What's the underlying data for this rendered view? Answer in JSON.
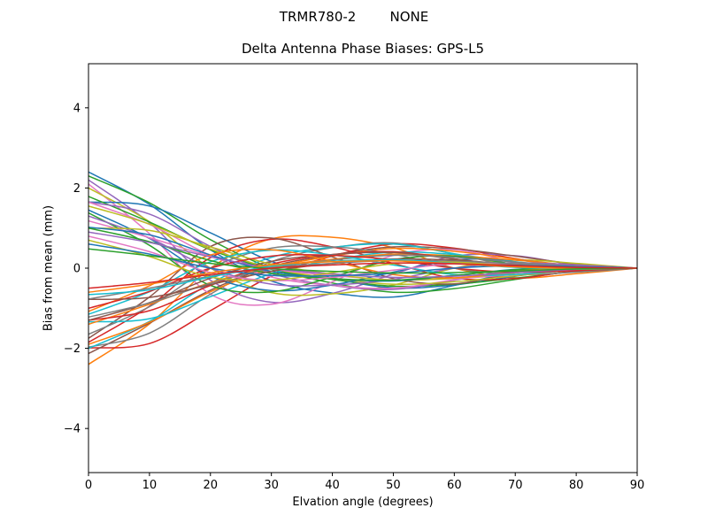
{
  "figure": {
    "suptitle": "TRMR780-2        NONE",
    "title": "Delta Antenna Phase Biases: GPS-L5",
    "xlabel": "Elvation angle (degrees)",
    "ylabel": "Bias from mean (mm)",
    "background": "#ffffff",
    "axes_color": "#000000"
  },
  "chart_data": {
    "type": "line",
    "suptitle": "TRMR780-2        NONE",
    "title": "Delta Antenna Phase Biases: GPS-L5",
    "xlabel": "Elvation angle (degrees)",
    "ylabel": "Bias from mean (mm)",
    "xlim": [
      0,
      90
    ],
    "ylim": [
      -5.1,
      5.1
    ],
    "x_ticks": [
      0,
      10,
      20,
      30,
      40,
      50,
      60,
      70,
      80,
      90
    ],
    "x_tick_labels": [
      "0",
      "10",
      "20",
      "30",
      "40",
      "50",
      "60",
      "70",
      "80",
      "90"
    ],
    "y_ticks": [
      -4,
      -2,
      0,
      2,
      4
    ],
    "y_tick_labels": [
      "−4",
      "−2",
      "0",
      "2",
      "4"
    ],
    "grid": false,
    "legend": "none",
    "line_width": 1.5,
    "color_cycle": [
      "#1f77b4",
      "#ff7f0e",
      "#2ca02c",
      "#d62728",
      "#9467bd",
      "#8c564b",
      "#e377c2",
      "#7f7f7f",
      "#bcbd22",
      "#17becf"
    ],
    "x": [
      0,
      10,
      20,
      30,
      40,
      50,
      60,
      70,
      80,
      90
    ],
    "series": [
      {
        "color": "#1f77b4",
        "values": [
          2.4,
          1.59,
          0.46,
          -0.32,
          -0.62,
          -0.72,
          -0.43,
          -0.1,
          0.05,
          0
        ]
      },
      {
        "color": "#ff7f0e",
        "values": [
          -2.4,
          -1.39,
          0.0,
          0.73,
          0.77,
          0.51,
          0.0,
          -0.24,
          -0.14,
          0
        ]
      },
      {
        "color": "#2ca02c",
        "values": [
          2.3,
          1.63,
          0.71,
          0.0,
          -0.37,
          -0.6,
          -0.51,
          -0.28,
          -0.07,
          0
        ]
      },
      {
        "color": "#d62728",
        "values": [
          -1.99,
          -1.88,
          -1.06,
          -0.2,
          0.3,
          0.6,
          0.5,
          0.24,
          0.03,
          0
        ]
      },
      {
        "color": "#9467bd",
        "values": [
          2.2,
          1.13,
          -0.3,
          -0.85,
          -0.63,
          -0.15,
          0.3,
          0.31,
          0.08,
          0
        ]
      },
      {
        "color": "#8c564b",
        "values": [
          -2.13,
          -1.37,
          -0.55,
          0.04,
          0.33,
          0.53,
          0.48,
          0.3,
          0.1,
          0
        ]
      },
      {
        "color": "#e377c2",
        "values": [
          2.1,
          0.86,
          -0.65,
          -0.9,
          -0.34,
          0.32,
          0.46,
          0.15,
          -0.06,
          0
        ]
      },
      {
        "color": "#7f7f7f",
        "values": [
          -1.97,
          -1.62,
          -0.65,
          0.16,
          0.51,
          0.63,
          0.35,
          0.05,
          -0.06,
          0
        ]
      },
      {
        "color": "#bcbd22",
        "values": [
          2.0,
          1.16,
          0.0,
          -0.61,
          -0.64,
          -0.42,
          0.0,
          0.2,
          0.12,
          0
        ]
      },
      {
        "color": "#17becf",
        "values": [
          -2.0,
          -1.33,
          -0.38,
          0.27,
          0.52,
          0.6,
          0.36,
          0.09,
          -0.04,
          0
        ]
      },
      {
        "color": "#1f77b4",
        "values": [
          1.65,
          1.55,
          0.88,
          0.17,
          -0.25,
          -0.49,
          -0.42,
          -0.2,
          -0.02,
          0
        ]
      },
      {
        "color": "#ff7f0e",
        "values": [
          -1.9,
          -1.35,
          -0.59,
          0.0,
          0.3,
          0.49,
          0.42,
          0.23,
          0.06,
          0
        ]
      },
      {
        "color": "#2ca02c",
        "values": [
          1.79,
          1.15,
          0.46,
          -0.03,
          -0.28,
          -0.45,
          -0.4,
          -0.25,
          -0.08,
          0
        ]
      },
      {
        "color": "#d62728",
        "values": [
          -1.85,
          -0.95,
          0.26,
          0.72,
          0.53,
          0.12,
          -0.25,
          -0.26,
          -0.07,
          0
        ]
      },
      {
        "color": "#9467bd",
        "values": [
          1.65,
          1.35,
          0.54,
          -0.13,
          -0.43,
          -0.53,
          -0.3,
          -0.04,
          0.05,
          0
        ]
      },
      {
        "color": "#8c564b",
        "values": [
          -1.75,
          -0.72,
          0.54,
          0.75,
          0.28,
          -0.26,
          -0.39,
          -0.12,
          0.05,
          0
        ]
      },
      {
        "color": "#e377c2",
        "values": [
          1.65,
          1.09,
          0.32,
          -0.22,
          -0.43,
          -0.5,
          -0.29,
          -0.07,
          0.03,
          0
        ]
      },
      {
        "color": "#7f7f7f",
        "values": [
          -1.65,
          -0.96,
          0.0,
          0.5,
          0.53,
          0.35,
          0.0,
          -0.16,
          -0.1,
          0
        ]
      },
      {
        "color": "#bcbd22",
        "values": [
          1.55,
          1.1,
          0.48,
          0.0,
          -0.25,
          -0.4,
          -0.34,
          -0.19,
          -0.05,
          0
        ]
      },
      {
        "color": "#17becf",
        "values": [
          -1.34,
          -1.26,
          -0.71,
          -0.14,
          0.2,
          0.4,
          0.34,
          0.16,
          0.02,
          0
        ]
      },
      {
        "color": "#1f77b4",
        "values": [
          1.45,
          0.74,
          -0.2,
          -0.56,
          -0.42,
          -0.1,
          0.2,
          0.2,
          0.05,
          0
        ]
      },
      {
        "color": "#ff7f0e",
        "values": [
          -1.4,
          -0.9,
          -0.36,
          0.02,
          0.22,
          0.35,
          0.31,
          0.2,
          0.07,
          0
        ]
      },
      {
        "color": "#2ca02c",
        "values": [
          1.38,
          0.57,
          -0.43,
          -0.59,
          -0.22,
          0.21,
          0.3,
          0.1,
          -0.04,
          0
        ]
      },
      {
        "color": "#d62728",
        "values": [
          -1.3,
          -1.06,
          -0.43,
          0.1,
          0.34,
          0.41,
          0.23,
          0.03,
          -0.04,
          0
        ]
      },
      {
        "color": "#9467bd",
        "values": [
          1.3,
          0.75,
          0.0,
          -0.4,
          -0.42,
          -0.28,
          0.0,
          0.13,
          0.08,
          0
        ]
      },
      {
        "color": "#8c564b",
        "values": [
          -1.3,
          -0.86,
          -0.25,
          0.17,
          0.34,
          0.39,
          0.23,
          0.06,
          -0.02,
          0
        ]
      },
      {
        "color": "#e377c2",
        "values": [
          1.18,
          0.76,
          0.3,
          -0.02,
          -0.18,
          -0.29,
          -0.26,
          -0.16,
          -0.05,
          0
        ]
      },
      {
        "color": "#7f7f7f",
        "values": [
          -1.22,
          -0.87,
          -0.38,
          0.0,
          0.2,
          0.32,
          0.27,
          0.15,
          0.04,
          0
        ]
      },
      {
        "color": "#bcbd22",
        "values": [
          1.0,
          0.94,
          0.53,
          0.1,
          -0.15,
          -0.3,
          -0.25,
          -0.12,
          -0.01,
          0
        ]
      },
      {
        "color": "#17becf",
        "values": [
          -1.15,
          -0.59,
          0.16,
          0.45,
          0.33,
          0.08,
          -0.16,
          -0.16,
          -0.04,
          0
        ]
      },
      {
        "color": "#1f77b4",
        "values": [
          1.02,
          0.83,
          0.33,
          -0.08,
          -0.26,
          -0.32,
          -0.18,
          -0.03,
          0.03,
          0
        ]
      },
      {
        "color": "#ff7f0e",
        "values": [
          -1.08,
          -0.44,
          0.33,
          0.46,
          0.17,
          -0.16,
          -0.24,
          -0.08,
          0.03,
          0
        ]
      },
      {
        "color": "#2ca02c",
        "values": [
          1.0,
          0.66,
          0.19,
          -0.13,
          -0.26,
          -0.3,
          -0.18,
          -0.04,
          0.02,
          0
        ]
      },
      {
        "color": "#d62728",
        "values": [
          -1.0,
          -0.58,
          0.0,
          0.3,
          0.32,
          0.21,
          0.0,
          -0.1,
          -0.06,
          0
        ]
      },
      {
        "color": "#9467bd",
        "values": [
          0.9,
          0.64,
          0.28,
          0.0,
          -0.14,
          -0.23,
          -0.2,
          -0.11,
          -0.03,
          0
        ]
      },
      {
        "color": "#8c564b",
        "values": [
          -0.78,
          -0.73,
          -0.41,
          -0.08,
          0.12,
          0.23,
          0.2,
          0.09,
          0.01,
          0
        ]
      },
      {
        "color": "#e377c2",
        "values": [
          0.8,
          0.41,
          -0.11,
          -0.31,
          -0.23,
          -0.05,
          0.11,
          0.11,
          0.03,
          0
        ]
      },
      {
        "color": "#7f7f7f",
        "values": [
          -0.77,
          -0.5,
          -0.2,
          0.01,
          0.12,
          0.19,
          0.17,
          0.11,
          0.04,
          0
        ]
      },
      {
        "color": "#bcbd22",
        "values": [
          0.7,
          0.29,
          -0.22,
          -0.3,
          -0.11,
          0.11,
          0.15,
          0.05,
          -0.02,
          0
        ]
      },
      {
        "color": "#17becf",
        "values": [
          -0.66,
          -0.54,
          -0.22,
          0.05,
          0.17,
          0.21,
          0.12,
          0.02,
          -0.02,
          0
        ]
      },
      {
        "color": "#1f77b4",
        "values": [
          0.6,
          0.35,
          0.0,
          -0.18,
          -0.19,
          -0.13,
          0.0,
          0.06,
          0.04,
          0
        ]
      },
      {
        "color": "#ff7f0e",
        "values": [
          -0.6,
          -0.4,
          -0.12,
          0.08,
          0.16,
          0.18,
          0.11,
          0.03,
          -0.01,
          0
        ]
      },
      {
        "color": "#2ca02c",
        "values": [
          0.48,
          0.31,
          0.12,
          -0.01,
          -0.08,
          -0.12,
          -0.11,
          -0.07,
          -0.02,
          0
        ]
      },
      {
        "color": "#d62728",
        "values": [
          -0.5,
          -0.36,
          -0.16,
          0.0,
          0.08,
          0.13,
          0.11,
          0.06,
          0.02,
          0
        ]
      }
    ]
  }
}
